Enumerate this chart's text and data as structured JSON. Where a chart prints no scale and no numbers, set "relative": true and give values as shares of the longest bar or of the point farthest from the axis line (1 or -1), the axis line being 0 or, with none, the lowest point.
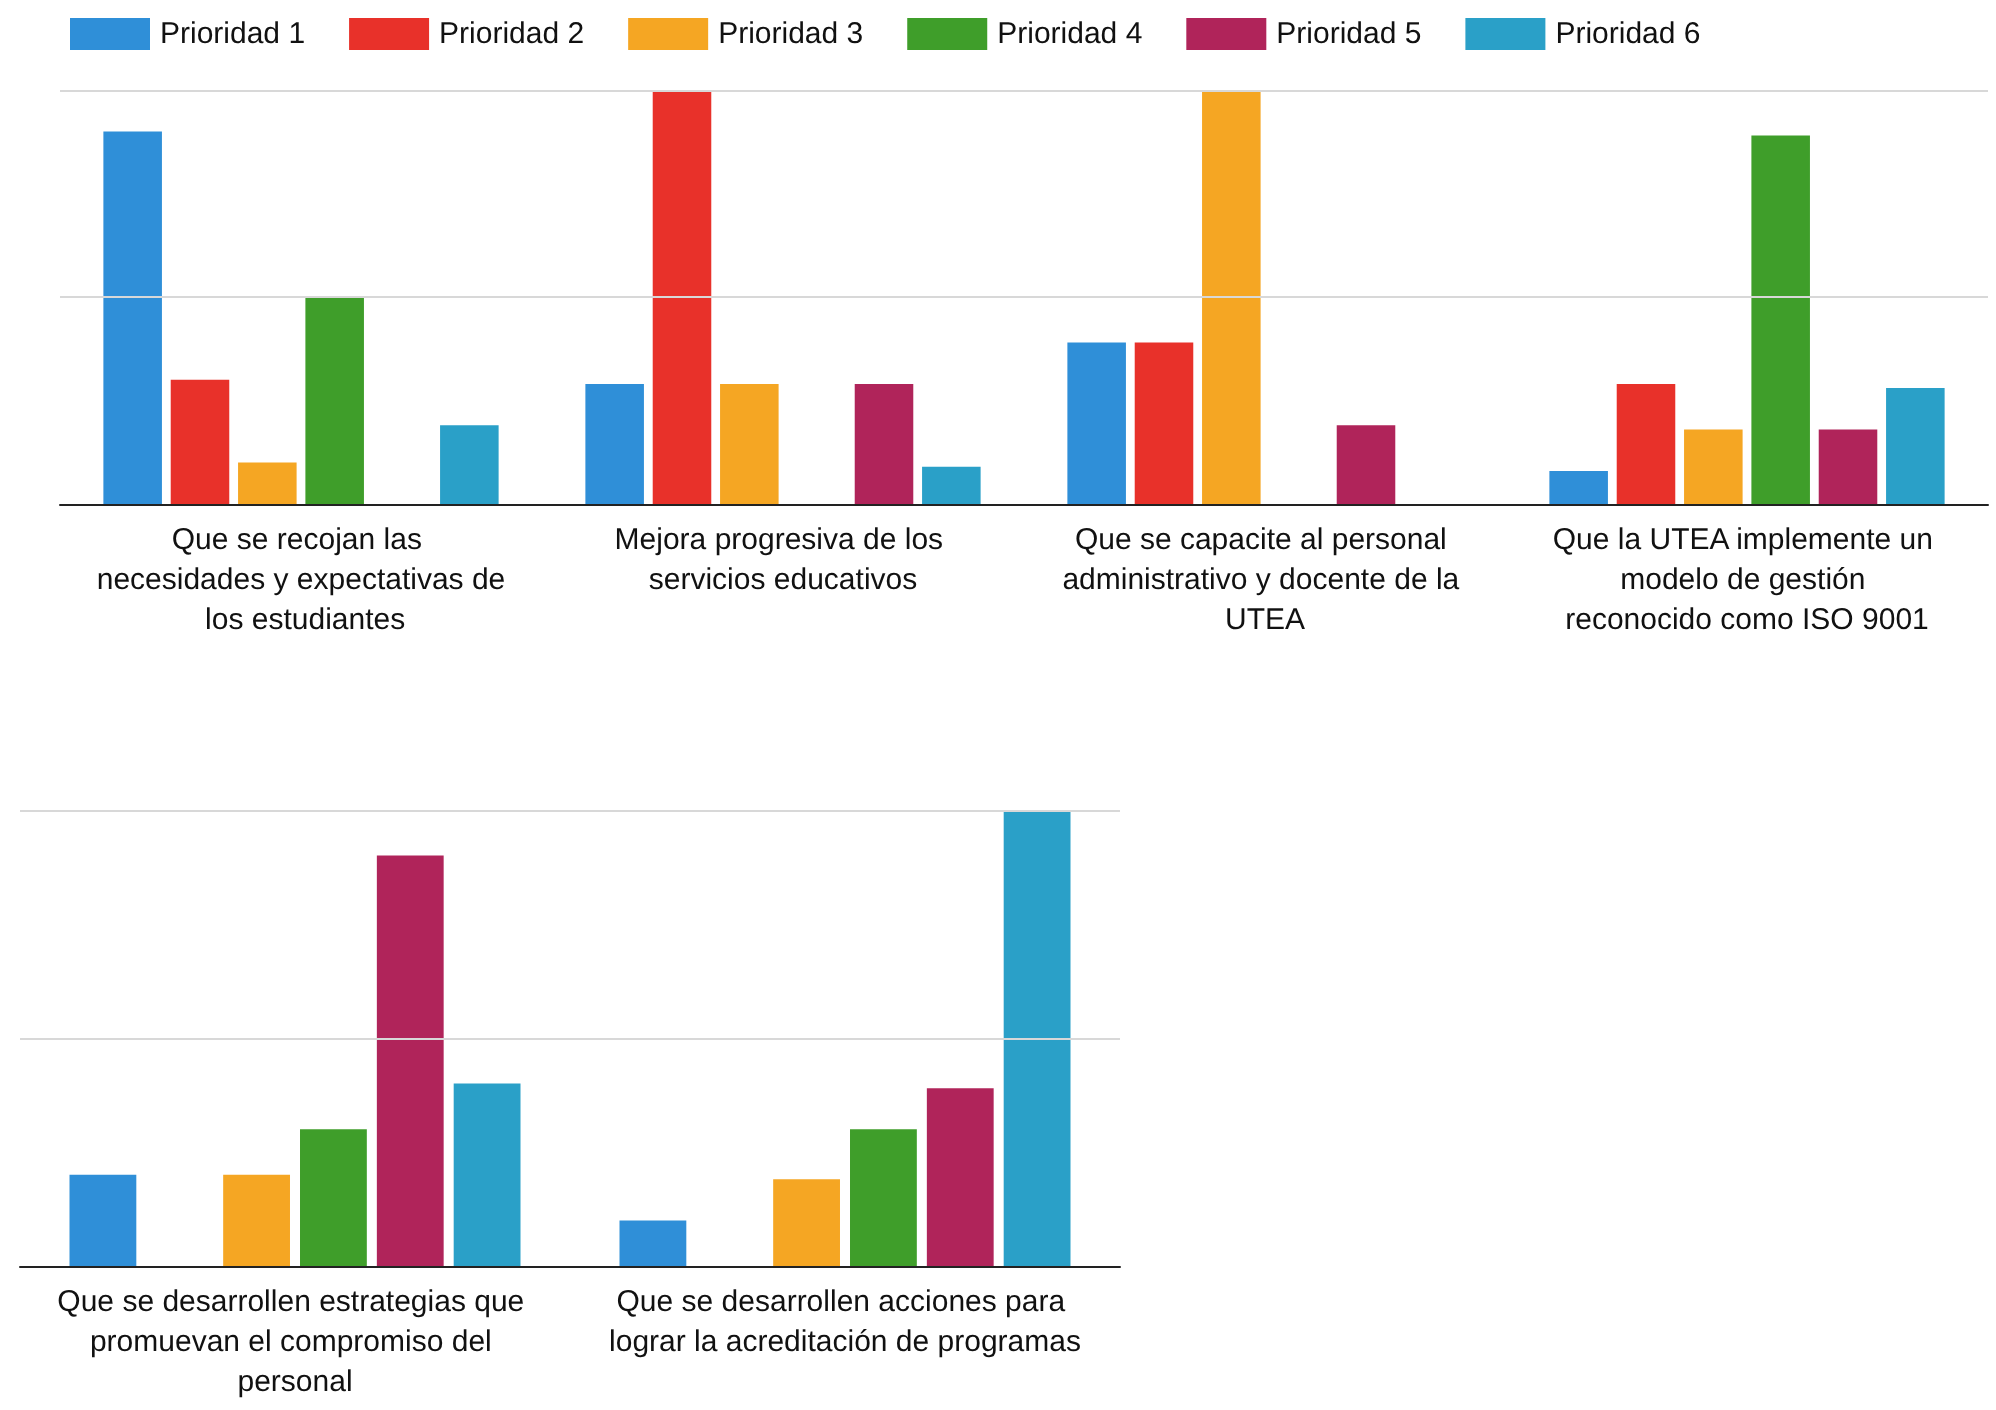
{
  "chart_data": [
    {
      "type": "bar",
      "relative": true,
      "legend": "top",
      "ref_lines": [
        {
          "axis": "y",
          "value": 0.5,
          "color": "#d8d8d8"
        },
        {
          "axis": "y",
          "value": 1,
          "color": "#d8d8d8"
        }
      ],
      "categories": [
        "Que se recojan las necesidades y expectativas de los estudiantes",
        "Mejora progresiva de los servicios educativos",
        "Que se capacite al personal administrativo y docente de la UTEA",
        "Que la UTEA implemente un modelo de gestión reconocido como ISO 9001"
      ],
      "series": [
        {
          "name": "Prioridad 1",
          "color": "#2f8fd8",
          "values": [
            0.9,
            0.29,
            0.39,
            0.08
          ]
        },
        {
          "name": "Prioridad 2",
          "color": "#e8312a",
          "values": [
            0.3,
            1,
            0.39,
            0.29
          ]
        },
        {
          "name": "Prioridad 3",
          "color": "#f5a623",
          "values": [
            0.1,
            0.29,
            1,
            0.18
          ]
        },
        {
          "name": "Prioridad 4",
          "color": "#3f9e2a",
          "values": [
            0.5,
            null,
            null,
            0.89
          ]
        },
        {
          "name": "Prioridad 5",
          "color": "#b0245a",
          "values": [
            null,
            0.29,
            0.19,
            0.18
          ]
        },
        {
          "name": "Prioridad 6",
          "color": "#2aa0c8",
          "values": [
            0.19,
            0.09,
            null,
            0.28
          ]
        }
      ]
    },
    {
      "type": "bar",
      "relative": true,
      "ref_lines": [
        {
          "axis": "y",
          "value": 0.5,
          "color": "#d8d8d8"
        },
        {
          "axis": "y",
          "value": 1,
          "color": "#d8d8d8"
        }
      ],
      "categories": [
        "Que se desarrollen estrategias que promuevan el compromiso del personal",
        "Que se desarrollen acciones para lograr la acreditación de programas"
      ],
      "series": [
        {
          "color": "#2f8fd8",
          "values": [
            0.2,
            0.1
          ]
        },
        {
          "color": "#e8312a",
          "values": [
            null,
            null
          ]
        },
        {
          "color": "#f5a623",
          "values": [
            0.2,
            0.19
          ]
        },
        {
          "color": "#3f9e2a",
          "values": [
            0.3,
            0.3
          ]
        },
        {
          "color": "#b0245a",
          "values": [
            0.9,
            0.39
          ]
        },
        {
          "color": "#2aa0c8",
          "values": [
            0.4,
            1
          ]
        }
      ]
    }
  ]
}
